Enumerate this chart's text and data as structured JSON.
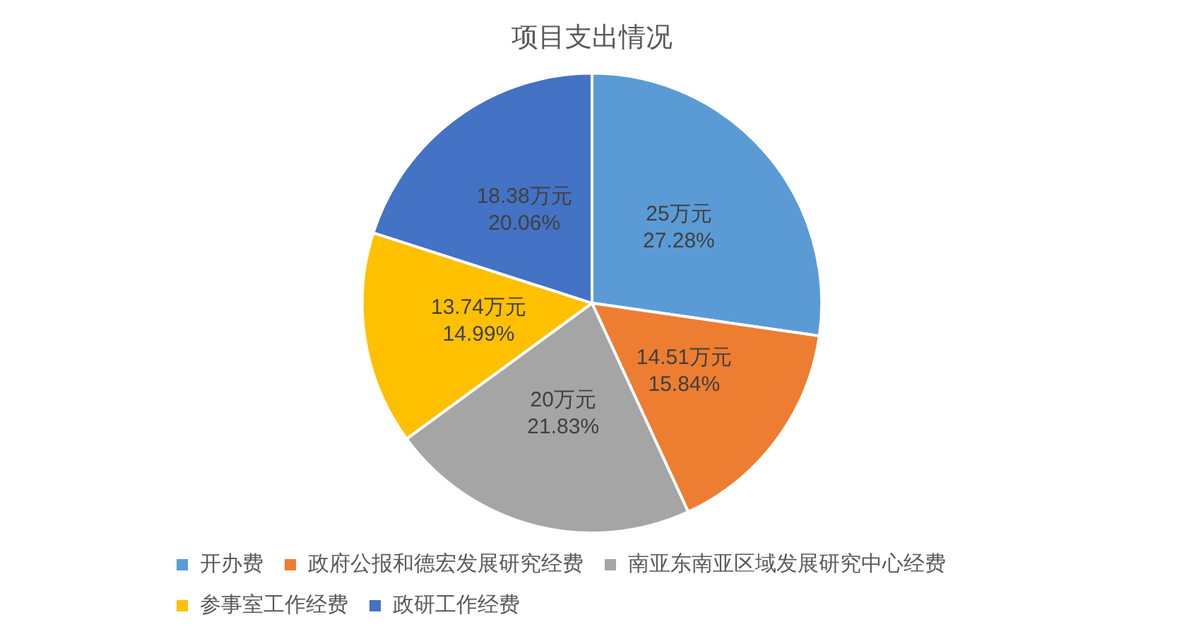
{
  "chart_data": {
    "type": "pie",
    "title": "项目支出情况",
    "categories": [
      "开办费",
      "政府公报和德宏发展研究经费",
      "南亚东南亚区域发展研究中心经费",
      "参事室工作经费",
      "政研工作经费"
    ],
    "values": [
      25,
      14.51,
      20,
      13.74,
      18.38
    ],
    "colors": [
      "#5b9bd5",
      "#ed7d31",
      "#a5a5a5",
      "#ffc000",
      "#4472c4"
    ],
    "value_labels": [
      "25万元\n27.28%",
      "14.51万元\n15.84%",
      "20万元\n21.83%",
      "13.74万元\n14.99%",
      "18.38万元\n20.06%"
    ],
    "legend": "bottom"
  }
}
